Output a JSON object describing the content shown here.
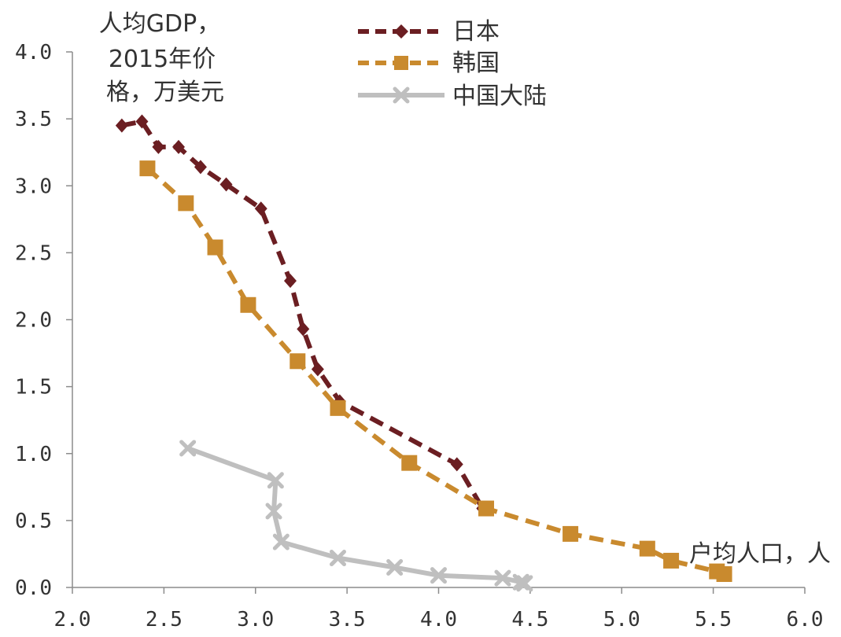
{
  "chart_data": {
    "type": "line",
    "ylabel_lines": [
      "人均GDP，",
      "2015年价",
      "格，万美元"
    ],
    "xlabel": "户均人口，人",
    "xlim": [
      2.0,
      6.0
    ],
    "ylim": [
      0.0,
      4.0
    ],
    "xticks": [
      "2.0",
      "2.5",
      "3.0",
      "3.5",
      "4.0",
      "4.5",
      "5.0",
      "5.5",
      "6.0"
    ],
    "yticks": [
      "0.0",
      "0.5",
      "1.0",
      "1.5",
      "2.0",
      "2.5",
      "3.0",
      "3.5",
      "4.0"
    ],
    "grid": false,
    "legend_position": "top-center",
    "series": [
      {
        "name": "日本",
        "color": "#6B1E22",
        "line_style": "dashed",
        "marker": "diamond",
        "points": [
          [
            2.27,
            3.45
          ],
          [
            2.38,
            3.48
          ],
          [
            2.47,
            3.29
          ],
          [
            2.58,
            3.29
          ],
          [
            2.7,
            3.14
          ],
          [
            2.84,
            3.01
          ],
          [
            3.03,
            2.83
          ],
          [
            3.19,
            2.29
          ],
          [
            3.26,
            1.93
          ],
          [
            3.34,
            1.63
          ],
          [
            3.46,
            1.39
          ],
          [
            4.1,
            0.92
          ],
          [
            4.24,
            0.59
          ]
        ]
      },
      {
        "name": "韩国",
        "color": "#C98A2E",
        "line_style": "dashed",
        "marker": "square",
        "points": [
          [
            2.41,
            3.13
          ],
          [
            2.62,
            2.87
          ],
          [
            2.78,
            2.54
          ],
          [
            2.96,
            2.11
          ],
          [
            3.23,
            1.69
          ],
          [
            3.45,
            1.34
          ],
          [
            3.84,
            0.93
          ],
          [
            4.26,
            0.59
          ],
          [
            4.72,
            0.4
          ],
          [
            5.14,
            0.29
          ],
          [
            5.27,
            0.2
          ],
          [
            5.52,
            0.12
          ],
          [
            5.56,
            0.1
          ]
        ]
      },
      {
        "name": "中国大陆",
        "color": "#BFBFBF",
        "line_style": "solid",
        "marker": "x",
        "points": [
          [
            2.63,
            1.04
          ],
          [
            3.11,
            0.8
          ],
          [
            3.1,
            0.57
          ],
          [
            3.14,
            0.34
          ],
          [
            3.45,
            0.22
          ],
          [
            3.76,
            0.15
          ],
          [
            4.0,
            0.09
          ],
          [
            4.35,
            0.07
          ],
          [
            4.45,
            0.04
          ],
          [
            4.47,
            0.03
          ]
        ]
      }
    ]
  }
}
